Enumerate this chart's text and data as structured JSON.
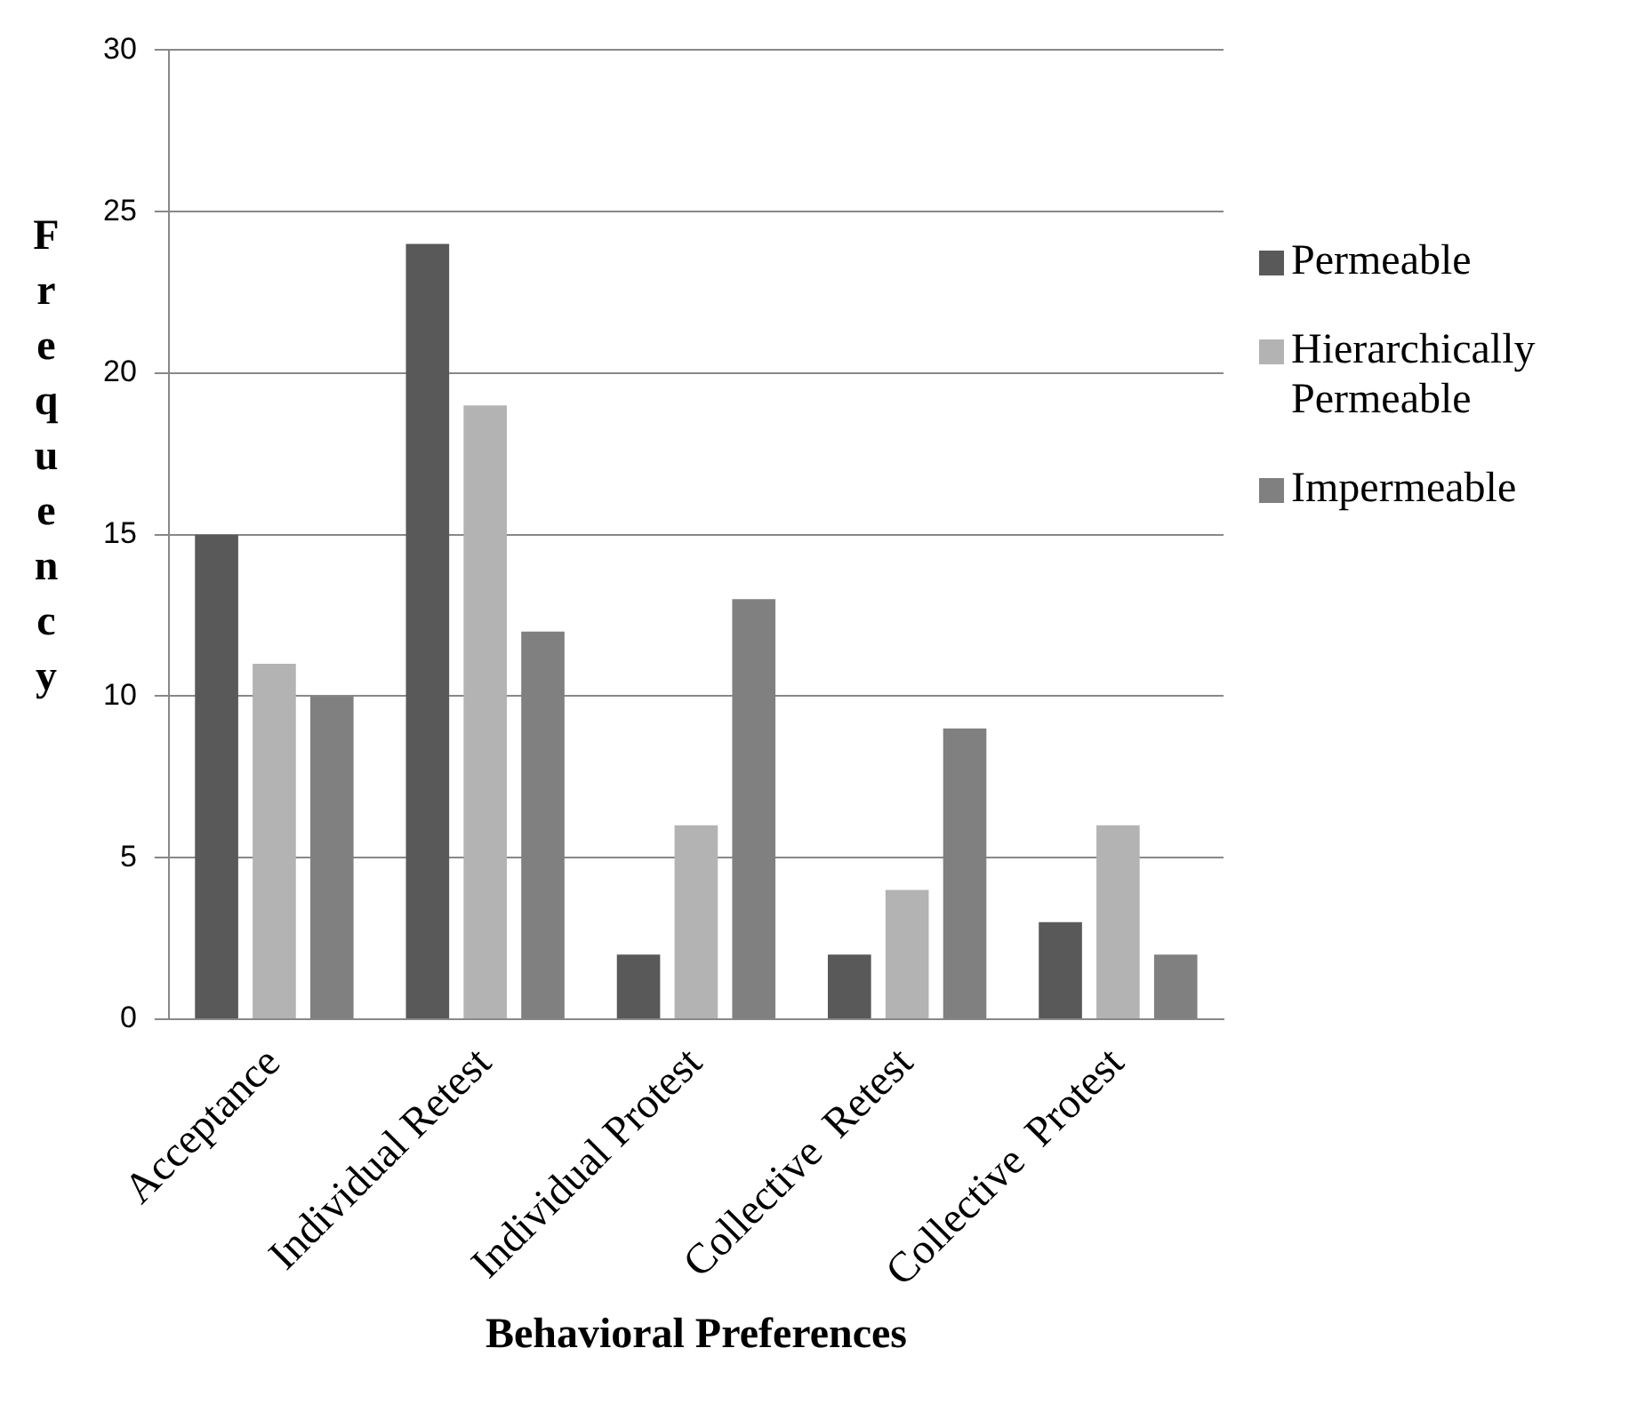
{
  "chart_data": {
    "type": "bar",
    "xlabel": "Behavioral Preferences",
    "ylabel": "Frequency",
    "categories": [
      "Acceptance",
      "Individual Retest",
      "Individual Protest",
      "Collective  Retest",
      "Collective  Protest"
    ],
    "series": [
      {
        "name": "Permeable",
        "color": "#595959",
        "values": [
          15,
          24,
          2,
          2,
          3
        ]
      },
      {
        "name": "Hierarchically Permeable",
        "color": "#b3b3b3",
        "values": [
          11,
          19,
          6,
          4,
          6
        ]
      },
      {
        "name": "Impermeable",
        "color": "#808080",
        "values": [
          10,
          12,
          13,
          9,
          2
        ]
      }
    ],
    "ylim": [
      0,
      30
    ],
    "yticks": [
      0,
      5,
      10,
      15,
      20,
      25,
      30
    ],
    "grid": "y",
    "legend": "right"
  }
}
